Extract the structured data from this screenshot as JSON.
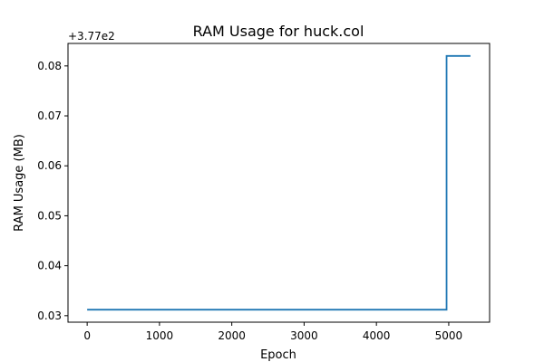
{
  "chart_data": {
    "type": "line",
    "title": "RAM Usage for huck.col",
    "xlabel": "Epoch",
    "ylabel": "RAM Usage (MB)",
    "y_offset_label": "+3.77e2",
    "y_offset": 377,
    "xlim": [
      -265,
      5565
    ],
    "ylim": [
      0.0287,
      0.0845
    ],
    "x_ticks": [
      0,
      1000,
      2000,
      3000,
      4000,
      5000
    ],
    "x_tick_labels": [
      "0",
      "1000",
      "2000",
      "3000",
      "4000",
      "5000"
    ],
    "y_ticks": [
      0.03,
      0.04,
      0.05,
      0.06,
      0.07,
      0.08
    ],
    "y_tick_labels": [
      "0.03",
      "0.04",
      "0.05",
      "0.06",
      "0.07",
      "0.08"
    ],
    "grid": false,
    "series": [
      {
        "color": "#1f77b4",
        "x": [
          0,
          4970,
          4970,
          5300
        ],
        "y": [
          0.0312,
          0.0312,
          0.082,
          0.082
        ]
      }
    ]
  }
}
